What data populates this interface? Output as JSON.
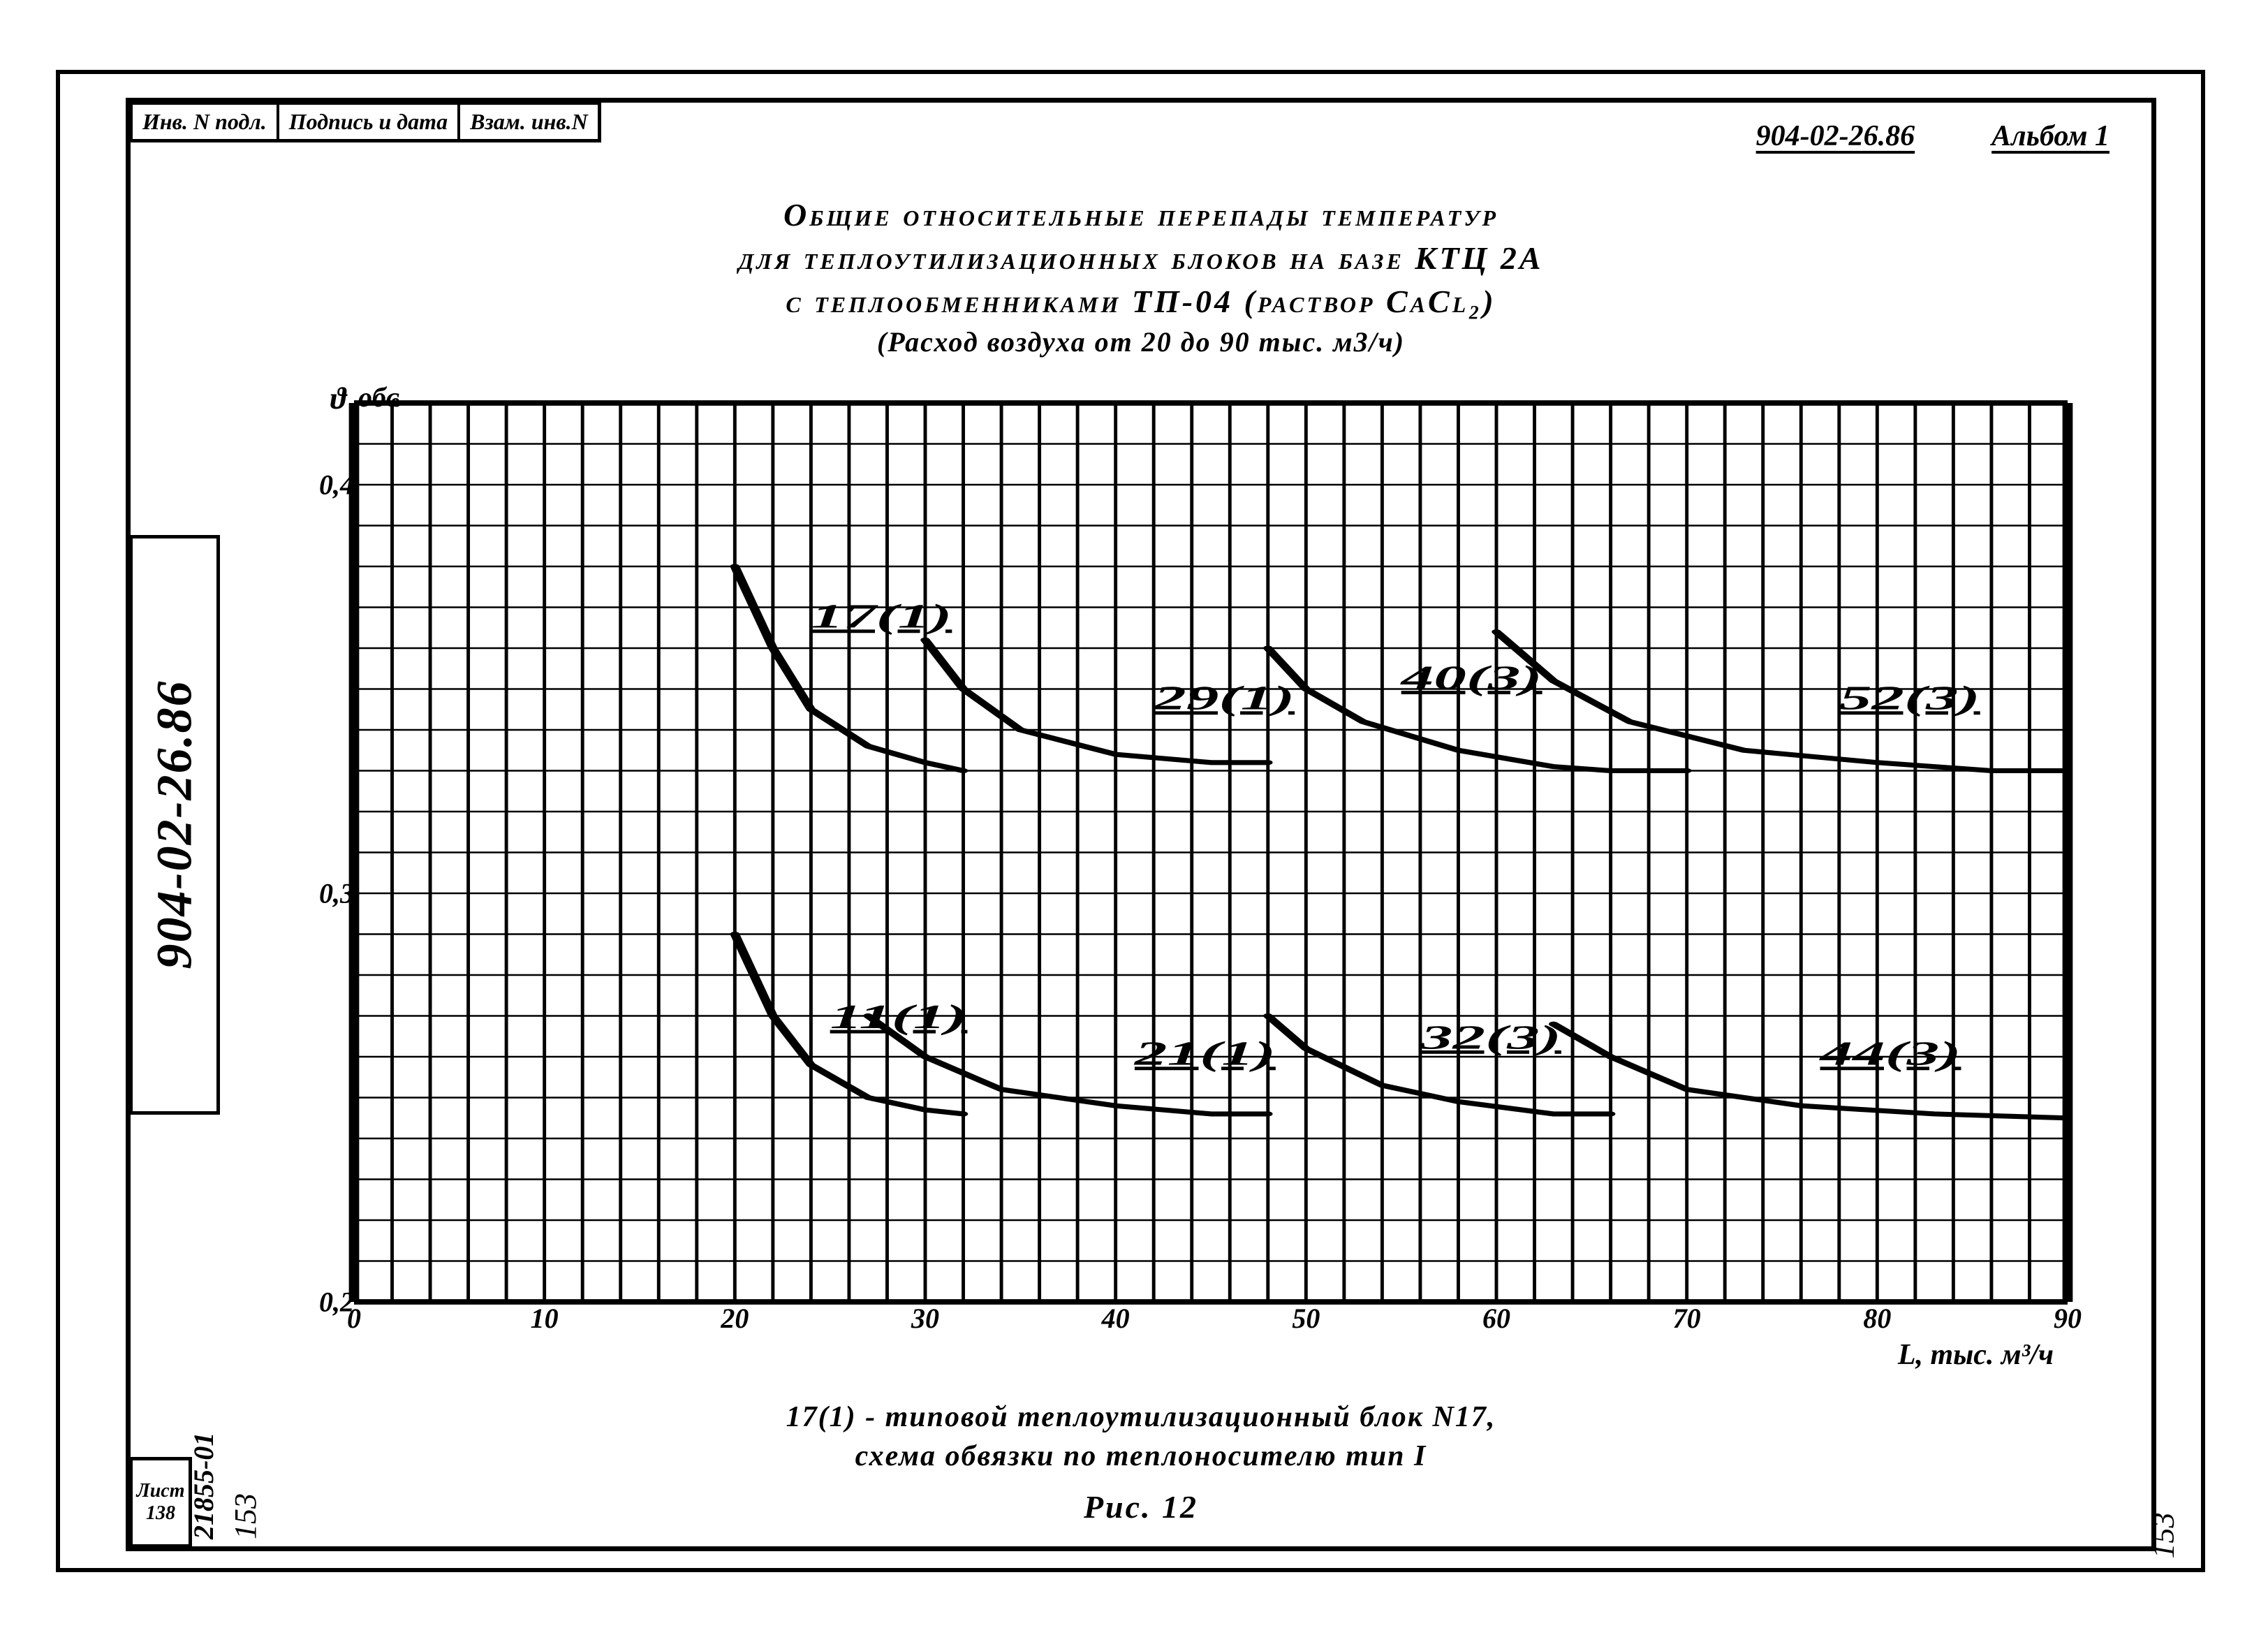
{
  "doc": {
    "id": "904-02-26.86",
    "album": "Альбом 1",
    "spine_code": "904-02-26.86",
    "archive_code": "21855-01",
    "sheet_label": "Лист",
    "sheet_num": "138",
    "page_num_left": "153",
    "page_num_right": "153"
  },
  "titleblock": {
    "cells": [
      "Инв. N подл.",
      "Подпись и дата",
      "Взам. инв.N"
    ]
  },
  "title": {
    "line1": "Общие относительные перепады температур",
    "line2": "для теплоутилизационных блоков на базе КТЦ 2А",
    "line3": "с теплообменниками ТП-04 (раствор CaCl₂)",
    "line4": "(Расход воздуха от 20 до 90 тыс. м3/ч)"
  },
  "footnote": {
    "line1": "17(1) - типовой теплоутилизационный блок N17,",
    "line2": "схема обвязки по теплоносителю тип I"
  },
  "fig": "Рис. 12",
  "chart": {
    "type": "line",
    "background_color": "#ffffff",
    "grid_color": "#000000",
    "grid_stroke": 2,
    "axis_stroke": 3,
    "xlim": [
      0,
      90
    ],
    "ylim": [
      0.2,
      0.42
    ],
    "x_ticks": [
      0,
      10,
      20,
      30,
      40,
      50,
      60,
      70,
      80,
      90
    ],
    "x_tick_labels": [
      "0",
      "10",
      "20",
      "30",
      "40",
      "50",
      "60",
      "70",
      "80",
      "90"
    ],
    "x_grid_step": 2,
    "y_ticks": [
      0.2,
      0.3,
      0.4
    ],
    "y_tick_labels": [
      "0,2",
      "0,3",
      "0,4"
    ],
    "y_grid_step": 0.01,
    "y_symbol": "ϑ",
    "y_top_label": "обҩ",
    "x_unit": "L, тыс. м³/ч",
    "curve_color": "#000000",
    "curve_width": 5.5,
    "curves": [
      {
        "label": "17(1)",
        "lx": 24,
        "ly": 0.365,
        "points": [
          [
            20,
            0.38
          ],
          [
            22,
            0.36
          ],
          [
            24,
            0.345
          ],
          [
            27,
            0.336
          ],
          [
            30,
            0.332
          ],
          [
            32,
            0.33
          ]
        ]
      },
      {
        "label": "29(1)",
        "lx": 42,
        "ly": 0.345,
        "points": [
          [
            30,
            0.362
          ],
          [
            32,
            0.35
          ],
          [
            35,
            0.34
          ],
          [
            40,
            0.334
          ],
          [
            45,
            0.332
          ],
          [
            48,
            0.332
          ]
        ]
      },
      {
        "label": "40(3)",
        "lx": 55,
        "ly": 0.35,
        "points": [
          [
            48,
            0.36
          ],
          [
            50,
            0.35
          ],
          [
            53,
            0.342
          ],
          [
            58,
            0.335
          ],
          [
            63,
            0.331
          ],
          [
            66,
            0.33
          ],
          [
            70,
            0.33
          ]
        ]
      },
      {
        "label": "52(3)",
        "lx": 78,
        "ly": 0.345,
        "points": [
          [
            60,
            0.364
          ],
          [
            63,
            0.352
          ],
          [
            67,
            0.342
          ],
          [
            73,
            0.335
          ],
          [
            80,
            0.332
          ],
          [
            86,
            0.33
          ],
          [
            90,
            0.33
          ]
        ]
      },
      {
        "label": "11(1)",
        "lx": 25,
        "ly": 0.267,
        "points": [
          [
            20,
            0.29
          ],
          [
            22,
            0.27
          ],
          [
            24,
            0.258
          ],
          [
            27,
            0.25
          ],
          [
            30,
            0.247
          ],
          [
            32,
            0.246
          ]
        ]
      },
      {
        "label": "21(1)",
        "lx": 41,
        "ly": 0.258,
        "points": [
          [
            27,
            0.27
          ],
          [
            30,
            0.26
          ],
          [
            34,
            0.252
          ],
          [
            40,
            0.248
          ],
          [
            45,
            0.246
          ],
          [
            48,
            0.246
          ]
        ]
      },
      {
        "label": "32(3)",
        "lx": 56,
        "ly": 0.262,
        "points": [
          [
            48,
            0.27
          ],
          [
            50,
            0.262
          ],
          [
            54,
            0.253
          ],
          [
            58,
            0.249
          ],
          [
            63,
            0.246
          ],
          [
            66,
            0.246
          ]
        ]
      },
      {
        "label": "44(3)",
        "lx": 77,
        "ly": 0.258,
        "points": [
          [
            63,
            0.268
          ],
          [
            66,
            0.26
          ],
          [
            70,
            0.252
          ],
          [
            76,
            0.248
          ],
          [
            83,
            0.246
          ],
          [
            90,
            0.245
          ]
        ]
      }
    ]
  }
}
